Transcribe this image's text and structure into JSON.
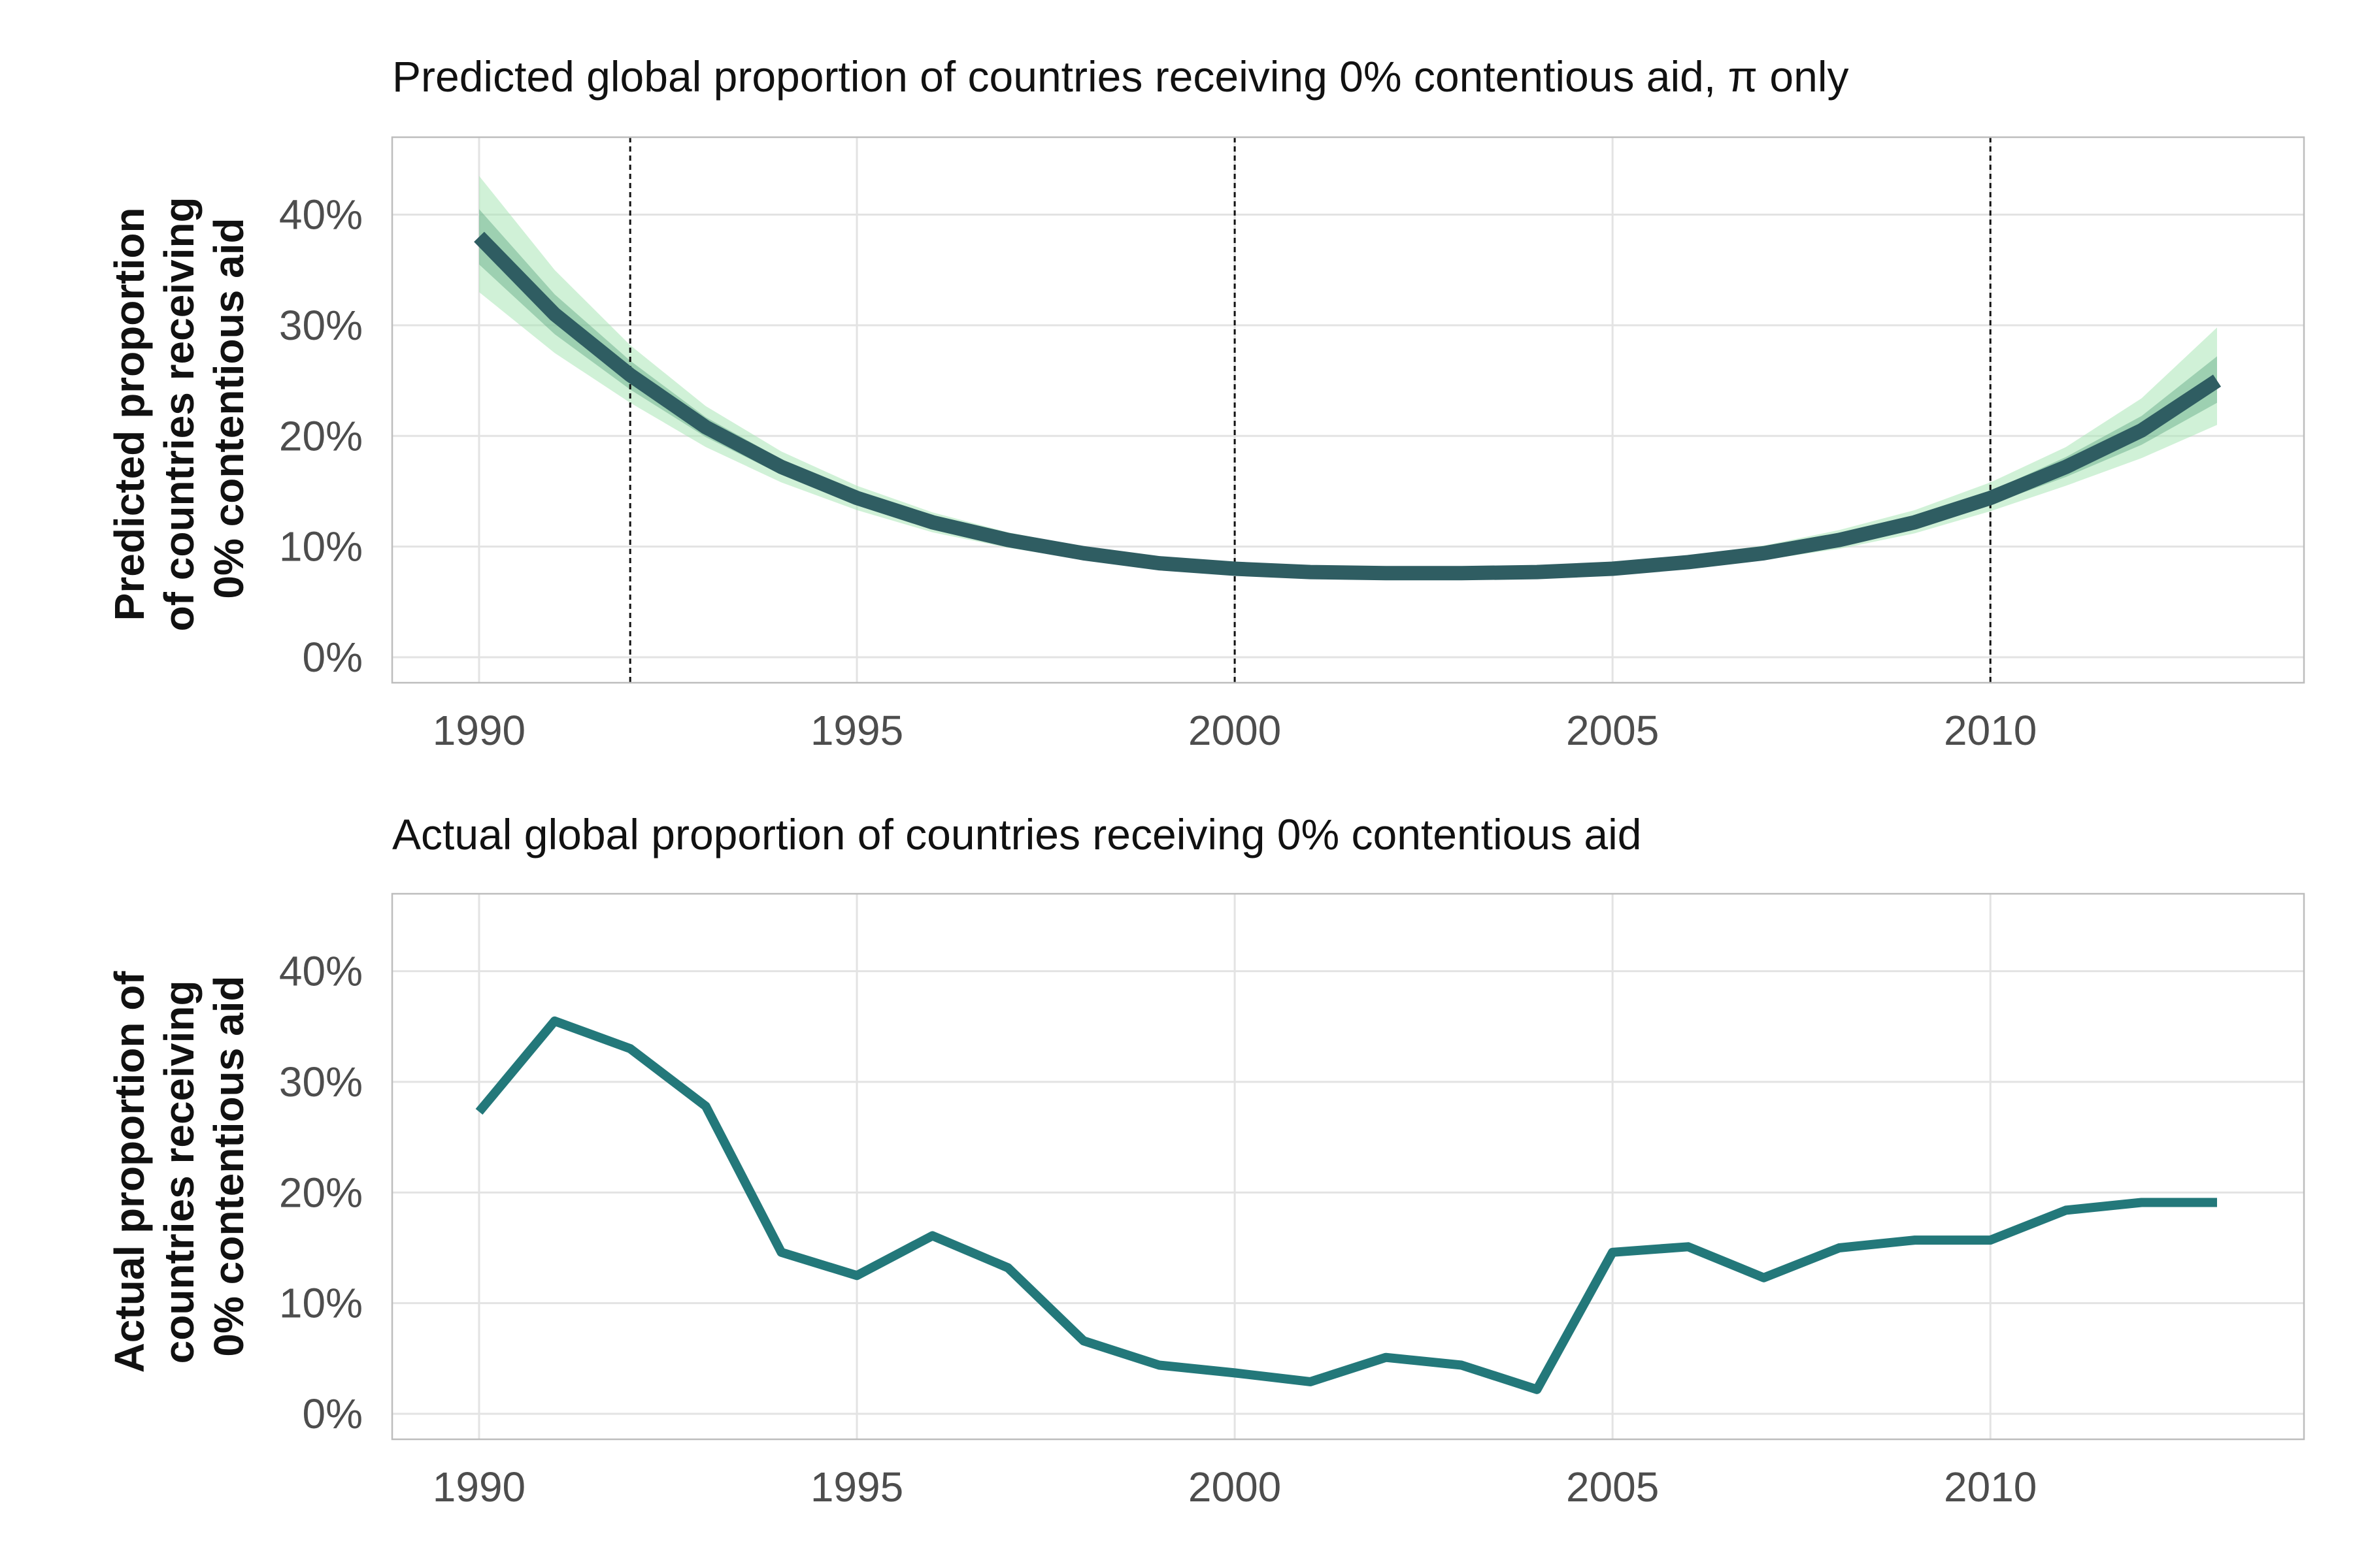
{
  "colors": {
    "predicted_line": "#2f5d62",
    "band_inner": "#5fa882",
    "band_outer": "#a9e6b6",
    "actual_line": "#23787a",
    "grid": "#e3e3e3",
    "panel_border": "#bdbdbd",
    "event_line": "#111111"
  },
  "chart_data": [
    {
      "type": "line",
      "title": "Predicted global proportion of countries receiving 0% contentious aid, π only",
      "ylabel_lines": [
        "Predicted proportion",
        "of countries receiving",
        "0% contentious aid"
      ],
      "xlabel": "",
      "x": [
        1990,
        1991,
        1992,
        1993,
        1994,
        1995,
        1996,
        1997,
        1998,
        1999,
        2000,
        2001,
        2002,
        2003,
        2004,
        2005,
        2006,
        2007,
        2008,
        2009,
        2010,
        2011,
        2012,
        2013
      ],
      "series": [
        {
          "values": [
            38.0,
            31.0,
            25.5,
            20.8,
            17.2,
            14.4,
            12.2,
            10.6,
            9.4,
            8.5,
            8.0,
            7.7,
            7.6,
            7.6,
            7.7,
            8.0,
            8.6,
            9.4,
            10.6,
            12.2,
            14.4,
            17.2,
            20.5,
            25.0
          ],
          "band_inner_lower": [
            35.5,
            29.2,
            24.2,
            19.9,
            16.5,
            13.9,
            11.8,
            10.3,
            9.1,
            8.2,
            7.7,
            7.4,
            7.3,
            7.3,
            7.4,
            7.7,
            8.3,
            9.1,
            10.2,
            11.7,
            13.8,
            16.3,
            19.2,
            23.0
          ],
          "band_inner_upper": [
            40.5,
            32.8,
            26.8,
            21.7,
            17.9,
            14.9,
            12.6,
            10.9,
            9.7,
            8.8,
            8.3,
            8.0,
            7.9,
            7.9,
            8.0,
            8.3,
            8.9,
            9.7,
            11.0,
            12.7,
            15.0,
            18.1,
            21.8,
            27.2
          ],
          "band_outer_lower": [
            33.0,
            27.5,
            23.0,
            19.0,
            15.8,
            13.3,
            11.3,
            9.9,
            8.8,
            7.9,
            7.4,
            7.1,
            7.0,
            7.0,
            7.1,
            7.4,
            8.0,
            8.8,
            9.8,
            11.2,
            13.2,
            15.5,
            18.0,
            21.0
          ],
          "band_outer_upper": [
            43.5,
            35.0,
            28.2,
            22.7,
            18.6,
            15.5,
            13.1,
            11.3,
            10.0,
            9.1,
            8.6,
            8.3,
            8.2,
            8.2,
            8.3,
            8.6,
            9.2,
            10.1,
            11.5,
            13.3,
            15.8,
            19.0,
            23.4,
            29.8
          ]
        }
      ],
      "vlines": [
        1992,
        2000,
        2010
      ],
      "xticks": [
        "1990",
        "1995",
        "2000",
        "2005",
        "2010"
      ],
      "yticks": [
        "0%",
        "10%",
        "20%",
        "30%",
        "40%"
      ],
      "xlim": [
        1988.85,
        2014.15
      ],
      "ylim": [
        -2.3,
        47.0
      ],
      "grid": true
    },
    {
      "type": "line",
      "title": "Actual global proportion of countries receiving 0% contentious aid",
      "ylabel_lines": [
        "Actual proportion of",
        "countries receiving",
        "0% contentious aid"
      ],
      "xlabel": "",
      "x": [
        1990,
        1991,
        1992,
        1993,
        1994,
        1995,
        1996,
        1997,
        1998,
        1999,
        2000,
        2001,
        2002,
        2003,
        2004,
        2005,
        2006,
        2007,
        2008,
        2009,
        2010,
        2011,
        2012,
        2013
      ],
      "series": [
        {
          "values": [
            27.3,
            35.5,
            33.0,
            27.8,
            14.6,
            12.5,
            16.1,
            13.2,
            6.6,
            4.4,
            3.7,
            2.9,
            5.1,
            4.4,
            2.2,
            14.6,
            15.1,
            12.3,
            15.0,
            15.7,
            15.7,
            18.4,
            19.1,
            19.1
          ]
        }
      ],
      "xticks": [
        "1990",
        "1995",
        "2000",
        "2005",
        "2010"
      ],
      "yticks": [
        "0%",
        "10%",
        "20%",
        "30%",
        "40%"
      ],
      "xlim": [
        1988.85,
        2014.15
      ],
      "ylim": [
        -2.3,
        47.0
      ],
      "grid": true
    }
  ]
}
